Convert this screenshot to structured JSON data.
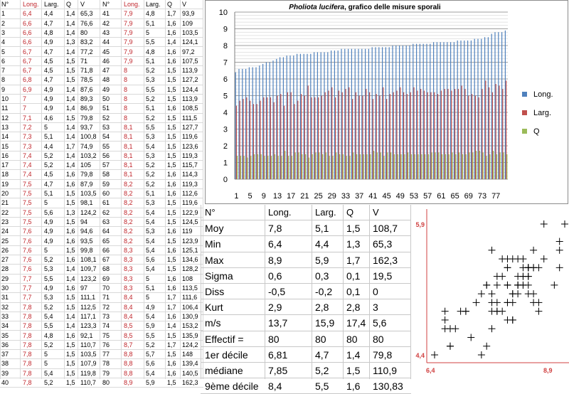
{
  "raw_table": {
    "headers": [
      "N°",
      "Long.",
      "Larg.",
      "Q",
      "V",
      "N°",
      "Long.",
      "Larg.",
      "Q",
      "V"
    ],
    "rows": [
      [
        "1",
        "6,4",
        "4,4",
        "1,4",
        "65,3",
        "41",
        "7,9",
        "4,8",
        "1,7",
        "93,9"
      ],
      [
        "2",
        "6,6",
        "4,7",
        "1,4",
        "76,6",
        "42",
        "7,9",
        "5,1",
        "1,6",
        "109"
      ],
      [
        "3",
        "6,6",
        "4,8",
        "1,4",
        "80",
        "43",
        "7,9",
        "5",
        "1,6",
        "103,5"
      ],
      [
        "4",
        "6,6",
        "4,9",
        "1,3",
        "83,2",
        "44",
        "7,9",
        "5,5",
        "1,4",
        "124,1"
      ],
      [
        "5",
        "6,7",
        "4,7",
        "1,4",
        "77,2",
        "45",
        "7,9",
        "4,8",
        "1,6",
        "97,2"
      ],
      [
        "6",
        "6,7",
        "4,5",
        "1,5",
        "71",
        "46",
        "7,9",
        "5,1",
        "1,6",
        "107,5"
      ],
      [
        "7",
        "6,7",
        "4,5",
        "1,5",
        "71,8",
        "47",
        "8",
        "5,2",
        "1,5",
        "113,9"
      ],
      [
        "8",
        "6,8",
        "4,7",
        "1,5",
        "78,5",
        "48",
        "8",
        "5,3",
        "1,5",
        "127,2"
      ],
      [
        "9",
        "6,9",
        "4,9",
        "1,4",
        "87,6",
        "49",
        "8",
        "5,5",
        "1,5",
        "124,4"
      ],
      [
        "10",
        "7",
        "4,9",
        "1,4",
        "89,3",
        "50",
        "8",
        "5,2",
        "1,5",
        "113,9"
      ],
      [
        "11",
        "7",
        "4,9",
        "1,4",
        "86,9",
        "51",
        "8",
        "5,1",
        "1,6",
        "108,5"
      ],
      [
        "12",
        "7,1",
        "4,6",
        "1,5",
        "79,8",
        "52",
        "8",
        "5,2",
        "1,5",
        "111,5"
      ],
      [
        "13",
        "7,2",
        "5",
        "1,4",
        "93,7",
        "53",
        "8,1",
        "5,5",
        "1,5",
        "127,7"
      ],
      [
        "14",
        "7,3",
        "5,1",
        "1,4",
        "100,8",
        "54",
        "8,1",
        "5,3",
        "1,5",
        "119,6"
      ],
      [
        "15",
        "7,3",
        "4,4",
        "1,7",
        "74,9",
        "55",
        "8,1",
        "5,4",
        "1,5",
        "123,6"
      ],
      [
        "16",
        "7,4",
        "5,2",
        "1,4",
        "103,2",
        "56",
        "8,1",
        "5,3",
        "1,5",
        "119,3"
      ],
      [
        "17",
        "7,4",
        "5,2",
        "1,4",
        "105",
        "57",
        "8,1",
        "5,2",
        "1,5",
        "115,7"
      ],
      [
        "18",
        "7,4",
        "4,5",
        "1,6",
        "79,8",
        "58",
        "8,1",
        "5,2",
        "1,6",
        "114,3"
      ],
      [
        "19",
        "7,5",
        "4,7",
        "1,6",
        "87,9",
        "59",
        "8,2",
        "5,2",
        "1,6",
        "119,3"
      ],
      [
        "20",
        "7,5",
        "5,1",
        "1,5",
        "103,5",
        "60",
        "8,2",
        "5,1",
        "1,6",
        "112,6"
      ],
      [
        "21",
        "7,5",
        "5",
        "1,5",
        "98,1",
        "61",
        "8,2",
        "5,3",
        "1,5",
        "119,6"
      ],
      [
        "22",
        "7,5",
        "5,6",
        "1,3",
        "124,2",
        "62",
        "8,2",
        "5,4",
        "1,5",
        "122,9"
      ],
      [
        "23",
        "7,5",
        "4,9",
        "1,5",
        "94",
        "63",
        "8,2",
        "5,4",
        "1,5",
        "124,5"
      ],
      [
        "24",
        "7,6",
        "4,9",
        "1,6",
        "94,6",
        "64",
        "8,2",
        "5,3",
        "1,6",
        "119"
      ],
      [
        "25",
        "7,6",
        "4,9",
        "1,6",
        "93,5",
        "65",
        "8,2",
        "5,4",
        "1,5",
        "123,9"
      ],
      [
        "26",
        "7,6",
        "5",
        "1,5",
        "99,8",
        "66",
        "8,3",
        "5,4",
        "1,6",
        "125,1"
      ],
      [
        "27",
        "7,6",
        "5,2",
        "1,6",
        "108,1",
        "67",
        "8,3",
        "5,6",
        "1,5",
        "134,6"
      ],
      [
        "28",
        "7,6",
        "5,3",
        "1,4",
        "109,7",
        "68",
        "8,3",
        "5,4",
        "1,5",
        "128,2"
      ],
      [
        "29",
        "7,7",
        "5,5",
        "1,4",
        "123,2",
        "69",
        "8,3",
        "5",
        "1,6",
        "108"
      ],
      [
        "30",
        "7,7",
        "4,9",
        "1,6",
        "97",
        "70",
        "8,3",
        "5,1",
        "1,6",
        "113,5"
      ],
      [
        "31",
        "7,7",
        "5,3",
        "1,5",
        "111,1",
        "71",
        "8,4",
        "5",
        "1,7",
        "111,6"
      ],
      [
        "32",
        "7,8",
        "5,2",
        "1,5",
        "112,5",
        "72",
        "8,4",
        "4,9",
        "1,7",
        "106,4"
      ],
      [
        "33",
        "7,8",
        "5,4",
        "1,4",
        "117,1",
        "73",
        "8,4",
        "5,4",
        "1,6",
        "130,9"
      ],
      [
        "34",
        "7,8",
        "5,5",
        "1,4",
        "123,3",
        "74",
        "8,5",
        "5,9",
        "1,4",
        "153,2"
      ],
      [
        "35",
        "7,8",
        "4,8",
        "1,6",
        "92,1",
        "75",
        "8,5",
        "5,5",
        "1,5",
        "135,9"
      ],
      [
        "36",
        "7,8",
        "5,2",
        "1,5",
        "110,7",
        "76",
        "8,7",
        "5,2",
        "1,7",
        "124,2"
      ],
      [
        "37",
        "7,8",
        "5",
        "1,5",
        "103,5",
        "77",
        "8,8",
        "5,7",
        "1,5",
        "148"
      ],
      [
        "38",
        "7,8",
        "5",
        "1,5",
        "107,9",
        "78",
        "8,8",
        "5,6",
        "1,6",
        "139,4"
      ],
      [
        "39",
        "7,8",
        "5,4",
        "1,5",
        "119,8",
        "79",
        "8,8",
        "5,4",
        "1,6",
        "140,5"
      ],
      [
        "40",
        "7,8",
        "5,2",
        "1,5",
        "110,7",
        "80",
        "8,9",
        "5,9",
        "1,5",
        "162,3"
      ]
    ]
  },
  "stats_table": {
    "headers": [
      "N°",
      "Long.",
      "Larg.",
      "Q",
      "V"
    ],
    "rows": [
      [
        "Moy",
        "7,8",
        "5,1",
        "1,5",
        "108,7"
      ],
      [
        "Min",
        "6,4",
        "4,4",
        "1,3",
        "65,3"
      ],
      [
        "Max",
        "8,9",
        "5,9",
        "1,7",
        "162,3"
      ],
      [
        "Sigma",
        "0,6",
        "0,3",
        "0,1",
        "19,5"
      ],
      [
        "Diss",
        "-0,5",
        "-0,2",
        "0,1",
        "0"
      ],
      [
        "Kurt",
        "2,9",
        "2,8",
        "2,8",
        "3"
      ],
      [
        "m/s",
        "13,7",
        "15,9",
        "17,4",
        "5,6"
      ],
      [
        "Effectif =",
        "80",
        "80",
        "80",
        "80"
      ],
      [
        "1er décile",
        "6,81",
        "4,7",
        "1,4",
        "79,8"
      ],
      [
        "médiane",
        "7,85",
        "5,2",
        "1,5",
        "110,9"
      ],
      [
        "9ème décile",
        "8,4",
        "5,5",
        "1,6",
        "130,83"
      ]
    ]
  },
  "chart_data": [
    {
      "type": "bar",
      "title_italic": "Pholiota lucifera",
      "title_rest": ", grafico delle misure sporali",
      "ylim": [
        0,
        10
      ],
      "yticks": [
        "0",
        "1",
        "2",
        "3",
        "4",
        "5",
        "6",
        "7",
        "8",
        "9",
        "10"
      ],
      "xticks": [
        "1",
        "5",
        "9",
        "13",
        "17",
        "21",
        "25",
        "29",
        "33",
        "37",
        "41",
        "45",
        "49",
        "53",
        "57",
        "61",
        "65",
        "69",
        "73",
        "77"
      ],
      "legend_position": "right",
      "series": [
        {
          "name": "Long.",
          "color": "#4f81bd",
          "values": [
            6.4,
            6.6,
            6.6,
            6.6,
            6.7,
            6.7,
            6.7,
            6.8,
            6.9,
            7,
            7,
            7.1,
            7.2,
            7.3,
            7.3,
            7.4,
            7.4,
            7.4,
            7.5,
            7.5,
            7.5,
            7.5,
            7.5,
            7.6,
            7.6,
            7.6,
            7.6,
            7.6,
            7.7,
            7.7,
            7.7,
            7.8,
            7.8,
            7.8,
            7.8,
            7.8,
            7.8,
            7.8,
            7.8,
            7.8,
            7.9,
            7.9,
            7.9,
            7.9,
            7.9,
            7.9,
            8,
            8,
            8,
            8,
            8,
            8,
            8.1,
            8.1,
            8.1,
            8.1,
            8.1,
            8.1,
            8.2,
            8.2,
            8.2,
            8.2,
            8.2,
            8.2,
            8.2,
            8.3,
            8.3,
            8.3,
            8.3,
            8.3,
            8.4,
            8.4,
            8.4,
            8.5,
            8.5,
            8.7,
            8.8,
            8.8,
            8.8,
            8.9
          ]
        },
        {
          "name": "Larg.",
          "color": "#c0504d",
          "values": [
            4.4,
            4.7,
            4.8,
            4.9,
            4.7,
            4.5,
            4.5,
            4.7,
            4.9,
            4.9,
            4.9,
            4.6,
            5,
            5.1,
            4.4,
            5.2,
            5.2,
            4.5,
            4.7,
            5.1,
            5,
            5.6,
            4.9,
            4.9,
            4.9,
            5,
            5.2,
            5.3,
            5.5,
            4.9,
            5.3,
            5.2,
            5.4,
            5.5,
            4.8,
            5.2,
            5,
            5,
            5.4,
            5.2,
            4.8,
            5.1,
            5,
            5.5,
            4.8,
            5.1,
            5.2,
            5.3,
            5.5,
            5.2,
            5.1,
            5.2,
            5.5,
            5.3,
            5.4,
            5.3,
            5.2,
            5.2,
            5.2,
            5.1,
            5.3,
            5.4,
            5.4,
            5.3,
            5.4,
            5.4,
            5.6,
            5.4,
            5,
            5.1,
            5,
            4.9,
            5.4,
            5.9,
            5.5,
            5.2,
            5.7,
            5.6,
            5.4,
            5.9
          ]
        },
        {
          "name": "Q",
          "color": "#9bbb59",
          "values": [
            1.4,
            1.4,
            1.4,
            1.3,
            1.4,
            1.5,
            1.5,
            1.5,
            1.4,
            1.4,
            1.4,
            1.5,
            1.4,
            1.4,
            1.7,
            1.4,
            1.4,
            1.6,
            1.6,
            1.5,
            1.5,
            1.3,
            1.5,
            1.6,
            1.6,
            1.5,
            1.6,
            1.4,
            1.4,
            1.6,
            1.5,
            1.5,
            1.4,
            1.4,
            1.6,
            1.5,
            1.5,
            1.5,
            1.5,
            1.5,
            1.7,
            1.6,
            1.6,
            1.4,
            1.6,
            1.6,
            1.5,
            1.5,
            1.5,
            1.5,
            1.6,
            1.5,
            1.5,
            1.5,
            1.5,
            1.5,
            1.5,
            1.6,
            1.6,
            1.6,
            1.5,
            1.5,
            1.5,
            1.6,
            1.5,
            1.6,
            1.5,
            1.5,
            1.6,
            1.6,
            1.7,
            1.7,
            1.6,
            1.4,
            1.5,
            1.7,
            1.5,
            1.6,
            1.6,
            1.5
          ]
        }
      ]
    },
    {
      "type": "scatter",
      "marker": "+",
      "xlim": [
        6.4,
        8.9
      ],
      "ylim": [
        4.4,
        5.9
      ],
      "x_tick_labels": [
        "6,4",
        "8,9"
      ],
      "y_tick_labels": [
        "5,9",
        "4,4"
      ],
      "points": [
        [
          6.4,
          4.4
        ],
        [
          6.6,
          4.7
        ],
        [
          6.6,
          4.8
        ],
        [
          6.6,
          4.9
        ],
        [
          6.7,
          4.7
        ],
        [
          6.7,
          4.5
        ],
        [
          6.7,
          4.5
        ],
        [
          6.8,
          4.7
        ],
        [
          6.9,
          4.9
        ],
        [
          7,
          4.9
        ],
        [
          7,
          4.9
        ],
        [
          7.1,
          4.6
        ],
        [
          7.2,
          5
        ],
        [
          7.3,
          5.1
        ],
        [
          7.3,
          4.4
        ],
        [
          7.4,
          5.2
        ],
        [
          7.4,
          5.2
        ],
        [
          7.4,
          4.5
        ],
        [
          7.5,
          4.7
        ],
        [
          7.5,
          5.1
        ],
        [
          7.5,
          5
        ],
        [
          7.5,
          5.6
        ],
        [
          7.5,
          4.9
        ],
        [
          7.6,
          4.9
        ],
        [
          7.6,
          4.9
        ],
        [
          7.6,
          5
        ],
        [
          7.6,
          5.2
        ],
        [
          7.6,
          5.3
        ],
        [
          7.7,
          5.5
        ],
        [
          7.7,
          4.9
        ],
        [
          7.7,
          5.3
        ],
        [
          7.8,
          5.2
        ],
        [
          7.8,
          5.4
        ],
        [
          7.8,
          5.5
        ],
        [
          7.8,
          4.8
        ],
        [
          7.8,
          5.2
        ],
        [
          7.8,
          5
        ],
        [
          7.8,
          5
        ],
        [
          7.8,
          5.4
        ],
        [
          7.8,
          5.2
        ],
        [
          7.9,
          4.8
        ],
        [
          7.9,
          5.1
        ],
        [
          7.9,
          5
        ],
        [
          7.9,
          5.5
        ],
        [
          7.9,
          4.8
        ],
        [
          7.9,
          5.1
        ],
        [
          8,
          5.2
        ],
        [
          8,
          5.3
        ],
        [
          8,
          5.5
        ],
        [
          8,
          5.2
        ],
        [
          8,
          5.1
        ],
        [
          8,
          5.2
        ],
        [
          8.1,
          5.5
        ],
        [
          8.1,
          5.3
        ],
        [
          8.1,
          5.4
        ],
        [
          8.1,
          5.3
        ],
        [
          8.1,
          5.2
        ],
        [
          8.1,
          5.2
        ],
        [
          8.2,
          5.2
        ],
        [
          8.2,
          5.1
        ],
        [
          8.2,
          5.3
        ],
        [
          8.2,
          5.4
        ],
        [
          8.2,
          5.4
        ],
        [
          8.2,
          5.3
        ],
        [
          8.2,
          5.4
        ],
        [
          8.3,
          5.4
        ],
        [
          8.3,
          5.6
        ],
        [
          8.3,
          5.4
        ],
        [
          8.3,
          5
        ],
        [
          8.3,
          5.1
        ],
        [
          8.4,
          5
        ],
        [
          8.4,
          4.9
        ],
        [
          8.4,
          5.4
        ],
        [
          8.5,
          5.9
        ],
        [
          8.5,
          5.5
        ],
        [
          8.7,
          5.2
        ],
        [
          8.8,
          5.7
        ],
        [
          8.8,
          5.6
        ],
        [
          8.8,
          5.4
        ],
        [
          8.9,
          5.9
        ]
      ]
    }
  ]
}
